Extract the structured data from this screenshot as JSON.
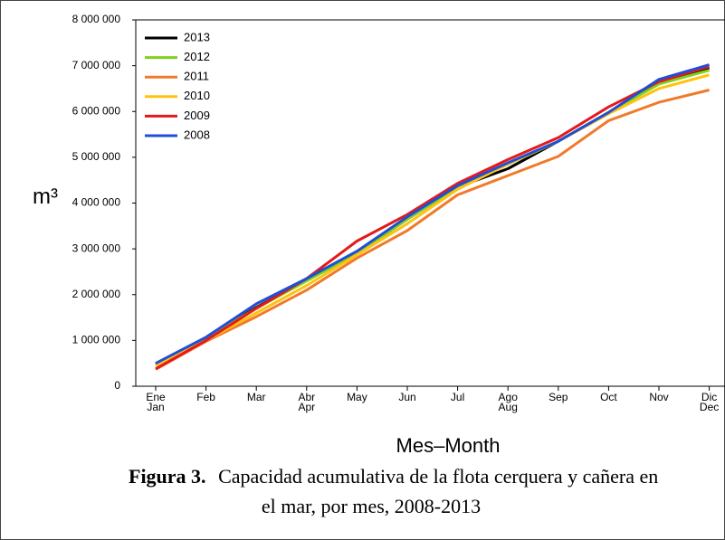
{
  "chart_data": {
    "type": "line",
    "ylabel": "m³",
    "xlabel": "Mes–Month",
    "caption_label": "Figura 3.",
    "caption_lines": [
      "Capacidad acumulativa de la flota cerquera y cañera en",
      "el mar, por mes, 2008-2013"
    ],
    "categories": [
      [
        "Ene",
        "Jan"
      ],
      [
        "Feb"
      ],
      [
        "Mar"
      ],
      [
        "Abr",
        "Apr"
      ],
      [
        "May"
      ],
      [
        "Jun"
      ],
      [
        "Jul"
      ],
      [
        "Ago",
        "Aug"
      ],
      [
        "Sep"
      ],
      [
        "Oct"
      ],
      [
        "Nov"
      ],
      [
        "Dic",
        "Dec"
      ]
    ],
    "ylim": [
      0,
      8000000
    ],
    "yticks": [
      0,
      {
        "value": 1000000,
        "label": "1 000 000"
      },
      {
        "value": 2000000,
        "label": "2 000 000"
      },
      {
        "value": 3000000,
        "label": "3 000 000"
      },
      {
        "value": 4000000,
        "label": "4 000 000"
      },
      {
        "value": 5000000,
        "label": "5 000 000"
      },
      {
        "value": 6000000,
        "label": "6 000 000"
      },
      {
        "value": 7000000,
        "label": "7 000 000"
      },
      {
        "value": 8000000,
        "label": "8 000 000"
      }
    ],
    "legend": "upper left",
    "series": [
      {
        "name": "2013",
        "color": "#000000",
        "values": [
          480000,
          1050000,
          1720000,
          2320000,
          2900000,
          3650000,
          4350000,
          4750000,
          5350000,
          5980000,
          6620000,
          6950000
        ]
      },
      {
        "name": "2012",
        "color": "#7fd11b",
        "values": [
          480000,
          1050000,
          1700000,
          2300000,
          2900000,
          3650000,
          4350000,
          4850000,
          5350000,
          5980000,
          6600000,
          6900000
        ]
      },
      {
        "name": "2011",
        "color": "#f07a2a",
        "values": [
          370000,
          980000,
          1520000,
          2100000,
          2800000,
          3400000,
          4180000,
          4600000,
          5020000,
          5800000,
          6200000,
          6470000
        ]
      },
      {
        "name": "2010",
        "color": "#ffc20e",
        "values": [
          450000,
          1000000,
          1600000,
          2200000,
          2870000,
          3550000,
          4300000,
          4850000,
          5350000,
          5950000,
          6500000,
          6800000
        ]
      },
      {
        "name": "2009",
        "color": "#e31a1c",
        "values": [
          380000,
          1000000,
          1700000,
          2350000,
          3170000,
          3750000,
          4430000,
          4950000,
          5430000,
          6100000,
          6650000,
          6980000
        ]
      },
      {
        "name": "2008",
        "color": "#1f4fd6",
        "values": [
          500000,
          1070000,
          1800000,
          2350000,
          2950000,
          3700000,
          4380000,
          4880000,
          5350000,
          5980000,
          6700000,
          7020000
        ]
      }
    ]
  }
}
